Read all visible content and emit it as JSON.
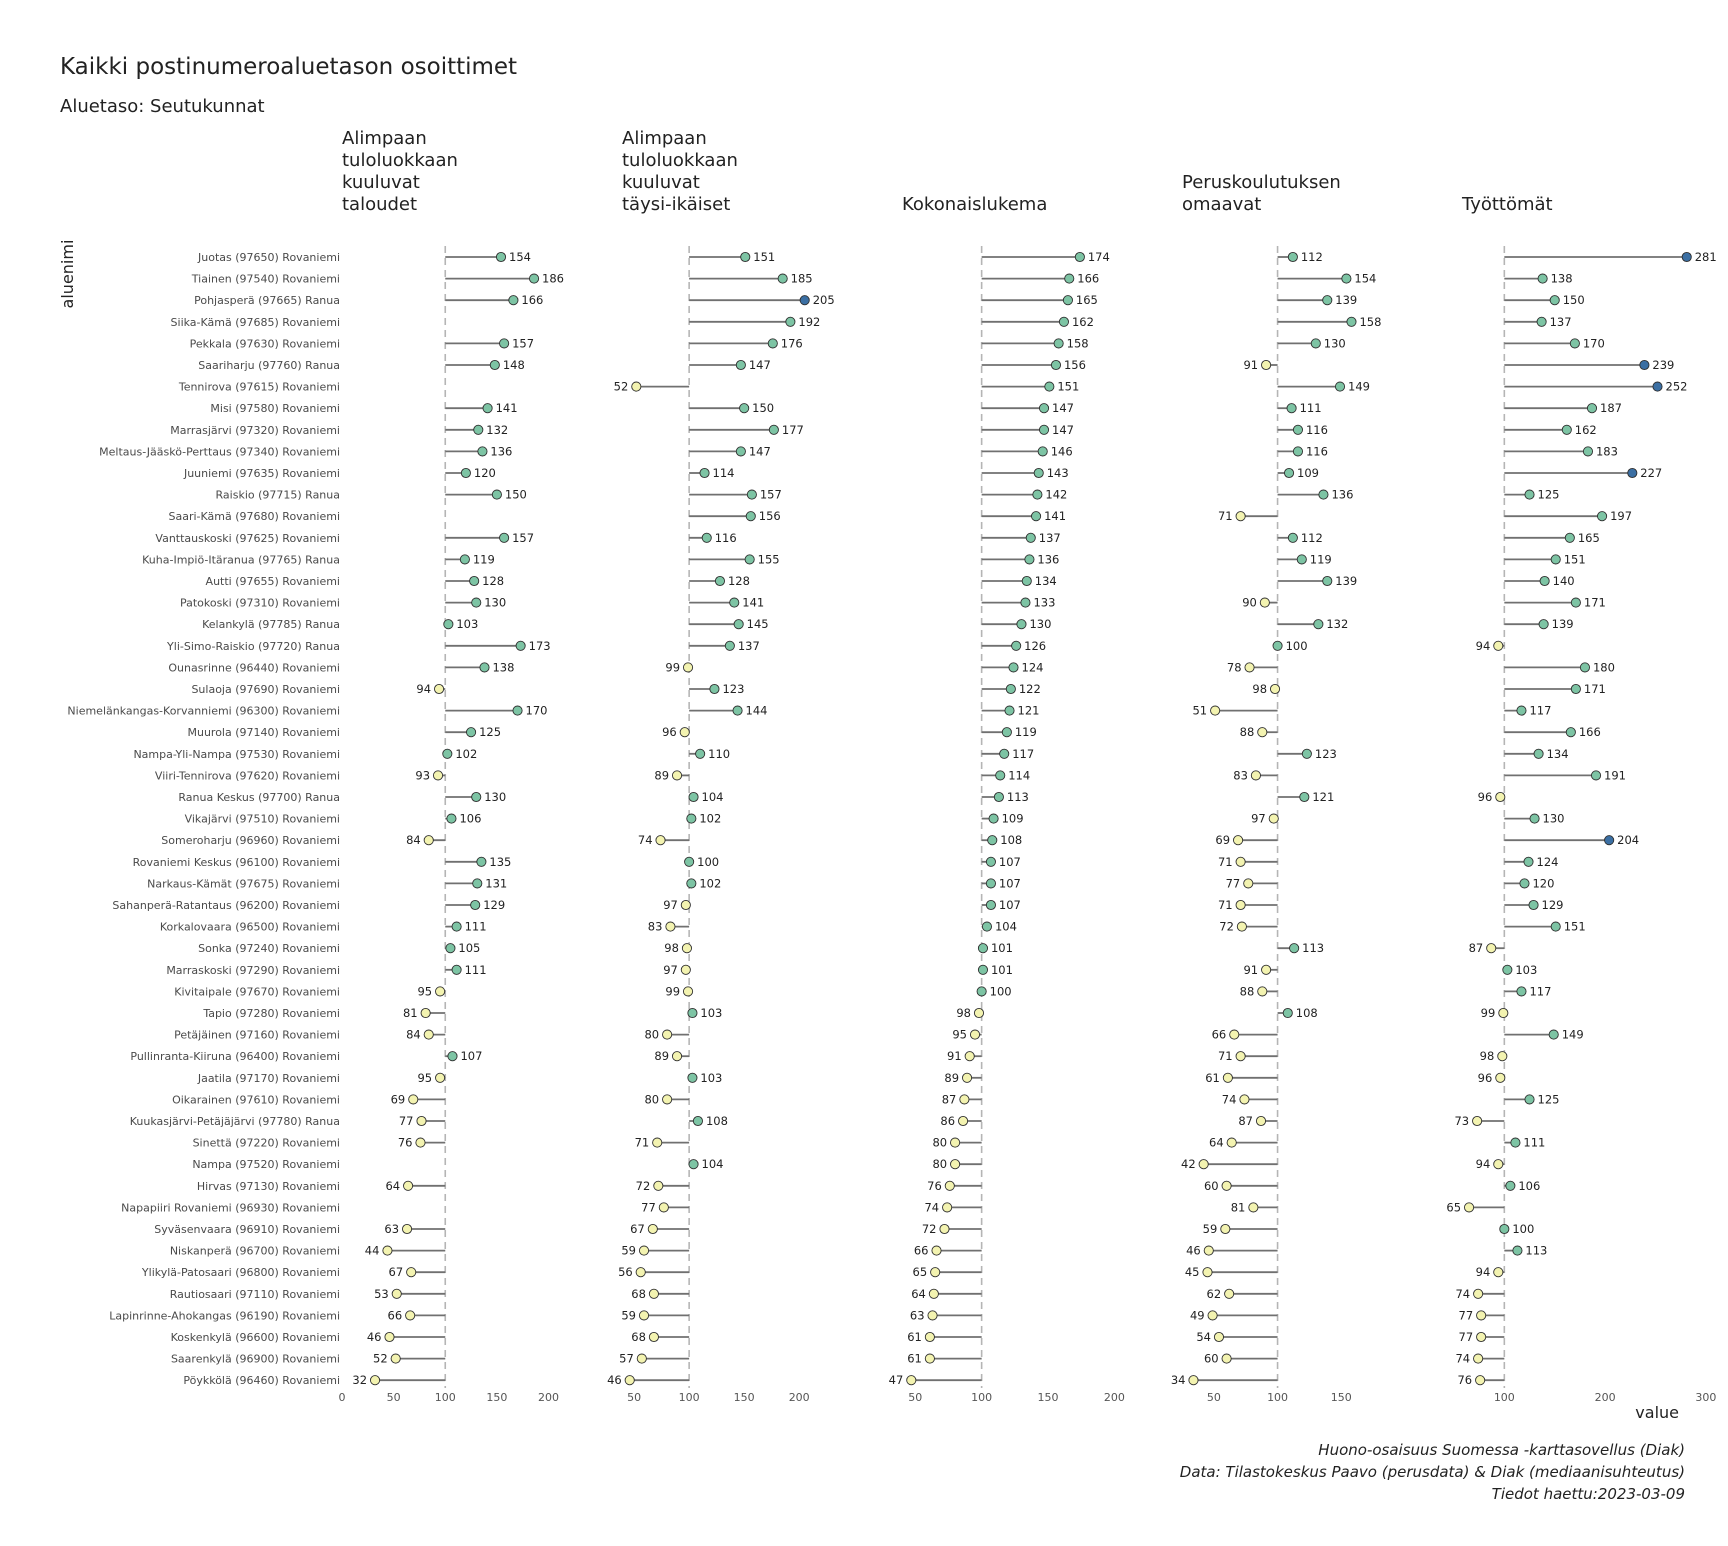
{
  "title": "Kaikki postinumeroaluetason osoittimet",
  "subtitle": "Aluetaso: Seutukunnat",
  "caption": [
    "Huono-osaisuus Suomessa -karttasovellus (Diak)",
    "Data: Tilastokeskus Paavo (perusdata) & Diak (mediaanisuhteutus)",
    "Tiedot haettu:2023-03-09"
  ],
  "chart_data": {
    "type": "lollipop",
    "ylabel": "aluenimi",
    "xlabel": "value",
    "reference_value": 100,
    "colors": {
      "low": "#f3f3b0",
      "mid": "#7dc4a4",
      "high": "#3b6fa3",
      "stem": "#707070",
      "reference_line": "#b5b5b5",
      "point_stroke": "#2f2f2f"
    },
    "regions": [
      "Juotas (97650) Rovaniemi",
      "Tiainen (97540) Rovaniemi",
      "Pohjasperä (97665) Ranua",
      "Siika-Kämä (97685) Rovaniemi",
      "Pekkala (97630) Rovaniemi",
      "Saariharju (97760) Ranua",
      "Tennirova (97615) Rovaniemi",
      "Misi (97580) Rovaniemi",
      "Marrasjärvi (97320) Rovaniemi",
      "Meltaus-Jääskö-Perttaus (97340) Rovaniemi",
      "Juuniemi (97635) Rovaniemi",
      "Raiskio (97715) Ranua",
      "Saari-Kämä (97680) Rovaniemi",
      "Vanttauskoski (97625) Rovaniemi",
      "Kuha-Impiö-Itäranua (97765) Ranua",
      "Autti (97655) Rovaniemi",
      "Patokoski (97310) Rovaniemi",
      "Kelankylä (97785) Ranua",
      "Yli-Simo-Raiskio (97720) Ranua",
      "Ounasrinne (96440) Rovaniemi",
      "Sulaoja (97690) Rovaniemi",
      "Niemelänkangas-Korvanniemi (96300) Rovaniemi",
      "Muurola (97140) Rovaniemi",
      "Nampa-Yli-Nampa (97530) Rovaniemi",
      "Viiri-Tennirova (97620) Rovaniemi",
      "Ranua Keskus (97700) Ranua",
      "Vikajärvi (97510) Rovaniemi",
      "Someroharju (96960) Rovaniemi",
      "Rovaniemi Keskus (96100) Rovaniemi",
      "Narkaus-Kämät (97675) Rovaniemi",
      "Sahanperä-Ratantaus (96200) Rovaniemi",
      "Korkalovaara (96500) Rovaniemi",
      "Sonka (97240) Rovaniemi",
      "Marraskoski (97290) Rovaniemi",
      "Kivitaipale (97670) Rovaniemi",
      "Tapio (97280) Rovaniemi",
      "Petäjäinen (97160) Rovaniemi",
      "Pullinranta-Kiiruna (96400) Rovaniemi",
      "Jaatila (97170) Rovaniemi",
      "Oikarainen (97610) Rovaniemi",
      "Kuukasjärvi-Petäjäjärvi (97780) Ranua",
      "Sinettä (97220) Rovaniemi",
      "Nampa (97520) Rovaniemi",
      "Hirvas (97130) Rovaniemi",
      "Napapiiri Rovaniemi (96930) Rovaniemi",
      "Syväsenvaara (96910) Rovaniemi",
      "Niskanperä (96700) Rovaniemi",
      "Ylikylä-Patosaari (96800) Rovaniemi",
      "Rautiosaari (97110) Rovaniemi",
      "Lapinrinne-Ahokangas (96190) Rovaniemi",
      "Koskenkylä (96600) Rovaniemi",
      "Saarenkylä (96900) Rovaniemi",
      "Pöykkölä (96460) Rovaniemi"
    ],
    "panels": [
      {
        "title": [
          "Alimpaan",
          "tuloluokkaan",
          "kuuluvat",
          "taloudet"
        ],
        "xlim": [
          0,
          215
        ],
        "ticks": [
          0,
          50,
          100,
          150,
          200
        ],
        "values": [
          154,
          186,
          166,
          null,
          157,
          148,
          null,
          141,
          132,
          136,
          120,
          150,
          null,
          157,
          119,
          128,
          130,
          103,
          173,
          138,
          94,
          170,
          125,
          102,
          93,
          130,
          106,
          84,
          135,
          131,
          129,
          111,
          105,
          111,
          95,
          81,
          84,
          107,
          95,
          69,
          77,
          76,
          null,
          64,
          null,
          63,
          44,
          67,
          53,
          66,
          46,
          52,
          32
        ]
      },
      {
        "title": [
          "Alimpaan",
          "tuloluokkaan",
          "kuuluvat",
          "täysi-ikäiset"
        ],
        "xlim": [
          39,
          218
        ],
        "ticks": [
          50,
          100,
          150,
          200
        ],
        "values": [
          151,
          185,
          205,
          192,
          176,
          147,
          52,
          150,
          177,
          147,
          114,
          157,
          156,
          116,
          155,
          128,
          141,
          145,
          137,
          99,
          123,
          144,
          96,
          110,
          89,
          104,
          102,
          74,
          100,
          102,
          97,
          83,
          98,
          97,
          99,
          103,
          80,
          89,
          103,
          80,
          108,
          71,
          104,
          72,
          77,
          67,
          59,
          56,
          68,
          59,
          68,
          57,
          46
        ]
      },
      {
        "title": [
          "Kokonaislukema"
        ],
        "xlim": [
          40,
          208
        ],
        "ticks": [
          50,
          100,
          150,
          200
        ],
        "values": [
          174,
          166,
          165,
          162,
          158,
          156,
          151,
          147,
          147,
          146,
          143,
          142,
          141,
          137,
          136,
          134,
          133,
          130,
          126,
          124,
          122,
          121,
          119,
          117,
          114,
          113,
          109,
          108,
          107,
          107,
          107,
          104,
          101,
          101,
          100,
          98,
          95,
          91,
          89,
          87,
          86,
          80,
          80,
          76,
          74,
          72,
          66,
          65,
          64,
          63,
          61,
          61,
          47
        ]
      },
      {
        "title": [
          "Peruskoulutuksen",
          "omaavat"
        ],
        "xlim": [
          25,
          200
        ],
        "ticks": [
          50,
          100,
          150
        ],
        "values": [
          112,
          154,
          139,
          158,
          130,
          91,
          149,
          111,
          116,
          116,
          109,
          136,
          71,
          112,
          119,
          139,
          90,
          132,
          100,
          78,
          98,
          51,
          88,
          123,
          83,
          121,
          97,
          69,
          71,
          77,
          71,
          72,
          113,
          91,
          88,
          108,
          66,
          71,
          61,
          74,
          87,
          64,
          42,
          60,
          81,
          59,
          46,
          45,
          62,
          49,
          54,
          60,
          34
        ]
      },
      {
        "title": [
          "Työttömät"
        ],
        "xlim": [
          58,
          316
        ],
        "ticks": [
          100,
          200,
          300
        ],
        "values": [
          281,
          138,
          150,
          137,
          170,
          239,
          252,
          187,
          162,
          183,
          227,
          125,
          197,
          165,
          151,
          140,
          171,
          139,
          94,
          180,
          171,
          117,
          166,
          134,
          191,
          96,
          130,
          204,
          124,
          120,
          129,
          151,
          87,
          103,
          117,
          99,
          149,
          98,
          96,
          125,
          73,
          111,
          94,
          106,
          65,
          100,
          113,
          94,
          74,
          77,
          77,
          74,
          76
        ]
      }
    ]
  }
}
